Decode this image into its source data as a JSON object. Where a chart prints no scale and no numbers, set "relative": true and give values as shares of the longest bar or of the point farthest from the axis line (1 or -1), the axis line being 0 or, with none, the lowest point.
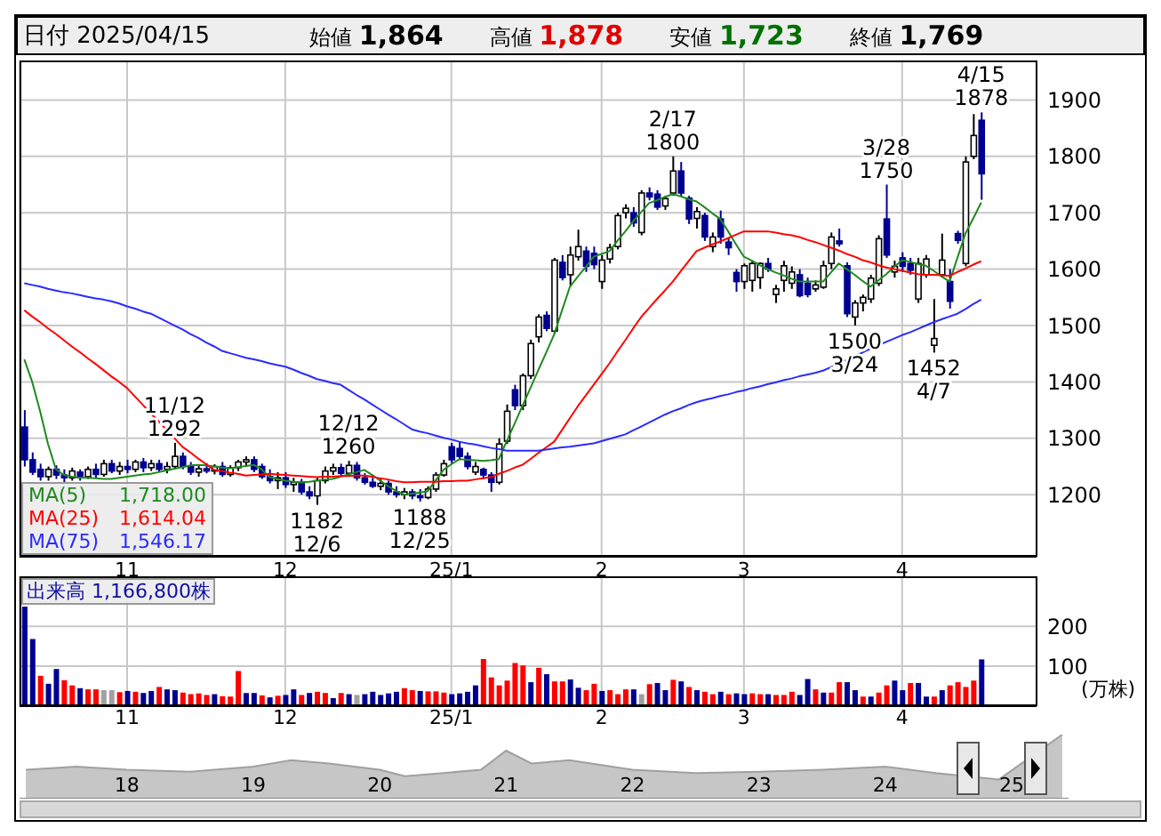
{
  "chart_data": [
    {
      "type": "candlestick",
      "title": "日付 2025/04/15",
      "categories": [
        null,
        null,
        null,
        null,
        null,
        null,
        null,
        null,
        null,
        null,
        null,
        null,
        null,
        "11",
        null,
        null,
        null,
        null,
        null,
        null,
        null,
        null,
        null,
        null,
        null,
        null,
        null,
        null,
        null,
        null,
        null,
        null,
        null,
        "12",
        null,
        null,
        null,
        null,
        null,
        null,
        null,
        null,
        null,
        null,
        null,
        null,
        null,
        null,
        null,
        null,
        null,
        null,
        null,
        null,
        "25/1",
        null,
        null,
        null,
        null,
        null,
        null,
        null,
        null,
        null,
        null,
        null,
        null,
        null,
        null,
        null,
        null,
        null,
        null,
        "2",
        null,
        null,
        null,
        null,
        null,
        null,
        null,
        null,
        null,
        null,
        null,
        null,
        null,
        null,
        null,
        null,
        null,
        "3",
        null,
        null,
        null,
        null,
        null,
        null,
        null,
        null,
        null,
        null,
        null,
        null,
        null,
        null,
        null,
        null,
        null,
        null,
        null,
        "4",
        null,
        null,
        null,
        null,
        null,
        null,
        null,
        null,
        null,
        null
      ],
      "ohlc": [
        [
          1320,
          1350,
          1250,
          1262
        ],
        [
          1262,
          1275,
          1235,
          1240
        ],
        [
          1245,
          1255,
          1225,
          1232
        ],
        [
          1232,
          1250,
          1225,
          1245
        ],
        [
          1245,
          1252,
          1228,
          1235
        ],
        [
          1235,
          1245,
          1222,
          1230
        ],
        [
          1230,
          1248,
          1225,
          1242
        ],
        [
          1240,
          1245,
          1225,
          1232
        ],
        [
          1232,
          1250,
          1228,
          1245
        ],
        [
          1245,
          1255,
          1230,
          1236
        ],
        [
          1236,
          1262,
          1232,
          1255
        ],
        [
          1255,
          1262,
          1238,
          1242
        ],
        [
          1242,
          1258,
          1235,
          1250
        ],
        [
          1250,
          1262,
          1238,
          1245
        ],
        [
          1245,
          1262,
          1240,
          1258
        ],
        [
          1258,
          1265,
          1240,
          1248
        ],
        [
          1248,
          1262,
          1242,
          1255
        ],
        [
          1255,
          1262,
          1240,
          1245
        ],
        [
          1245,
          1258,
          1238,
          1250
        ],
        [
          1250,
          1292,
          1245,
          1268
        ],
        [
          1268,
          1275,
          1245,
          1250
        ],
        [
          1250,
          1258,
          1235,
          1240
        ],
        [
          1240,
          1252,
          1232,
          1246
        ],
        [
          1246,
          1256,
          1238,
          1242
        ],
        [
          1242,
          1254,
          1236,
          1250
        ],
        [
          1250,
          1258,
          1232,
          1236
        ],
        [
          1236,
          1252,
          1232,
          1248
        ],
        [
          1248,
          1262,
          1242,
          1258
        ],
        [
          1258,
          1268,
          1250,
          1262
        ],
        [
          1262,
          1268,
          1240,
          1245
        ],
        [
          1250,
          1255,
          1228,
          1232
        ],
        [
          1232,
          1245,
          1220,
          1225
        ],
        [
          1225,
          1240,
          1210,
          1230
        ],
        [
          1230,
          1240,
          1212,
          1218
        ],
        [
          1218,
          1230,
          1205,
          1222
        ],
        [
          1222,
          1228,
          1200,
          1205
        ],
        [
          1205,
          1215,
          1192,
          1198
        ],
        [
          1198,
          1230,
          1182,
          1225
        ],
        [
          1225,
          1250,
          1220,
          1242
        ],
        [
          1242,
          1255,
          1235,
          1248
        ],
        [
          1248,
          1255,
          1232,
          1238
        ],
        [
          1238,
          1260,
          1232,
          1252
        ],
        [
          1252,
          1258,
          1225,
          1230
        ],
        [
          1230,
          1238,
          1218,
          1222
        ],
        [
          1222,
          1230,
          1212,
          1215
        ],
        [
          1215,
          1228,
          1208,
          1220
        ],
        [
          1220,
          1225,
          1200,
          1205
        ],
        [
          1205,
          1215,
          1195,
          1200
        ],
        [
          1200,
          1212,
          1192,
          1205
        ],
        [
          1205,
          1210,
          1192,
          1198
        ],
        [
          1198,
          1210,
          1188,
          1195
        ],
        [
          1195,
          1215,
          1192,
          1210
        ],
        [
          1210,
          1240,
          1205,
          1235
        ],
        [
          1235,
          1262,
          1232,
          1255
        ],
        [
          1285,
          1292,
          1255,
          1262
        ],
        [
          1282,
          1295,
          1262,
          1268
        ],
        [
          1268,
          1275,
          1245,
          1250
        ],
        [
          1240,
          1258,
          1235,
          1250
        ],
        [
          1245,
          1248,
          1228,
          1235
        ],
        [
          1235,
          1240,
          1205,
          1222
        ],
        [
          1222,
          1300,
          1218,
          1290
        ],
        [
          1295,
          1360,
          1290,
          1348
        ],
        [
          1386,
          1395,
          1350,
          1358
        ],
        [
          1358,
          1415,
          1350,
          1411
        ],
        [
          1411,
          1475,
          1405,
          1468
        ],
        [
          1480,
          1520,
          1470,
          1515
        ],
        [
          1518,
          1525,
          1490,
          1495
        ],
        [
          1490,
          1620,
          1485,
          1616
        ],
        [
          1612,
          1625,
          1580,
          1585
        ],
        [
          1590,
          1640,
          1570,
          1625
        ],
        [
          1622,
          1670,
          1615,
          1640
        ],
        [
          1632,
          1640,
          1595,
          1605
        ],
        [
          1628,
          1640,
          1600,
          1608
        ],
        [
          1578,
          1625,
          1565,
          1616
        ],
        [
          1618,
          1645,
          1610,
          1638
        ],
        [
          1640,
          1700,
          1635,
          1695
        ],
        [
          1700,
          1715,
          1690,
          1708
        ],
        [
          1700,
          1710,
          1675,
          1682
        ],
        [
          1665,
          1740,
          1660,
          1735
        ],
        [
          1735,
          1745,
          1722,
          1728
        ],
        [
          1733,
          1740,
          1705,
          1710
        ],
        [
          1712,
          1730,
          1705,
          1725
        ],
        [
          1735,
          1800,
          1730,
          1774
        ],
        [
          1774,
          1790,
          1730,
          1735
        ],
        [
          1726,
          1730,
          1680,
          1689
        ],
        [
          1690,
          1710,
          1672,
          1702
        ],
        [
          1695,
          1700,
          1650,
          1657
        ],
        [
          1640,
          1665,
          1630,
          1657
        ],
        [
          1689,
          1704,
          1645,
          1657
        ],
        [
          1648,
          1655,
          1625,
          1638
        ],
        [
          1594,
          1600,
          1560,
          1578
        ],
        [
          1578,
          1610,
          1565,
          1606
        ],
        [
          1580,
          1615,
          1560,
          1610
        ],
        [
          1585,
          1612,
          1565,
          1610
        ],
        [
          1610,
          1620,
          1595,
          1600
        ],
        [
          1555,
          1572,
          1540,
          1565
        ],
        [
          1580,
          1615,
          1560,
          1606
        ],
        [
          1575,
          1605,
          1565,
          1595
        ],
        [
          1590,
          1600,
          1550,
          1553
        ],
        [
          1575,
          1585,
          1550,
          1555
        ],
        [
          1565,
          1580,
          1560,
          1572
        ],
        [
          1568,
          1615,
          1565,
          1606
        ],
        [
          1610,
          1665,
          1600,
          1657
        ],
        [
          1650,
          1672,
          1640,
          1645
        ],
        [
          1606,
          1612,
          1515,
          1521
        ],
        [
          1515,
          1545,
          1500,
          1540
        ],
        [
          1540,
          1555,
          1525,
          1550
        ],
        [
          1547,
          1590,
          1540,
          1584
        ],
        [
          1575,
          1660,
          1570,
          1654
        ],
        [
          1689,
          1750,
          1620,
          1625
        ],
        [
          1595,
          1615,
          1585,
          1605
        ],
        [
          1620,
          1630,
          1595,
          1605
        ],
        [
          1610,
          1620,
          1590,
          1598
        ],
        [
          1547,
          1620,
          1540,
          1610
        ],
        [
          1590,
          1625,
          1585,
          1618
        ],
        [
          1465,
          1547,
          1452,
          1477
        ],
        [
          1590,
          1663,
          1585,
          1616
        ],
        [
          1578,
          1600,
          1530,
          1543
        ],
        [
          1663,
          1668,
          1645,
          1651
        ],
        [
          1610,
          1800,
          1605,
          1790
        ],
        [
          1800,
          1875,
          1795,
          1837
        ],
        [
          1864,
          1878,
          1723,
          1769
        ]
      ],
      "series": [
        {
          "name": "MA(5) 1,718.00",
          "type": "line",
          "color": "#1e8a1e",
          "values": [
            1440,
            1400,
            1348,
            1290,
            1245,
            1235,
            1232,
            1230,
            1230,
            1229,
            1228,
            1228,
            1230,
            1232,
            1234,
            1236,
            1237,
            1240,
            1243,
            1246,
            1249,
            1252,
            1253,
            1252,
            1250,
            1248,
            1247,
            1249,
            1251,
            1253,
            1245,
            1231,
            1228,
            1225,
            1223,
            1222,
            1223,
            1225,
            1227,
            1228,
            1232,
            1236,
            1240,
            1244,
            1235,
            1225,
            1215,
            1207,
            1200,
            1202,
            1204,
            1206,
            1225,
            1244,
            1254,
            1263,
            1262,
            1261,
            1260,
            1261,
            1263,
            1295,
            1326,
            1358,
            1389,
            1421,
            1452,
            1484,
            1527,
            1569,
            1587,
            1604,
            1622,
            1627,
            1632,
            1650,
            1667,
            1685,
            1701,
            1717,
            1722,
            1728,
            1733,
            1729,
            1724,
            1720,
            1710,
            1699,
            1689,
            1667,
            1644,
            1622,
            1615,
            1607,
            1600,
            1594,
            1589,
            1583,
            1578,
            1578,
            1578,
            1578,
            1594,
            1610,
            1600,
            1590,
            1579,
            1569,
            1580,
            1591,
            1604,
            1616,
            1613,
            1609,
            1606,
            1597,
            1587,
            1578,
            1620,
            1663,
            1690,
            1718
          ]
        },
        {
          "name": "MA(25) 1,614.04",
          "type": "line",
          "color": "#ff0000",
          "values": [
            1527,
            1516,
            1506,
            1495,
            1485,
            1474,
            1463,
            1453,
            1442,
            1432,
            1421,
            1410,
            1400,
            1389,
            1374,
            1359,
            1344,
            1330,
            1315,
            1300,
            1285,
            1275,
            1264,
            1254,
            1244,
            1242,
            1239,
            1237,
            1234,
            1235,
            1236,
            1237,
            1236,
            1235,
            1234,
            1233,
            1232,
            1231,
            1232,
            1232,
            1233,
            1233,
            1234,
            1234,
            1232,
            1229,
            1227,
            1224,
            1222,
            1222,
            1223,
            1223,
            1223,
            1224,
            1224,
            1225,
            1225,
            1227,
            1229,
            1231,
            1237,
            1242,
            1248,
            1253,
            1263,
            1274,
            1284,
            1294,
            1315,
            1336,
            1357,
            1376,
            1395,
            1414,
            1433,
            1454,
            1474,
            1495,
            1515,
            1531,
            1547,
            1562,
            1578,
            1596,
            1614,
            1632,
            1638,
            1644,
            1649,
            1655,
            1661,
            1667,
            1667,
            1667,
            1667,
            1665,
            1662,
            1660,
            1657,
            1652,
            1648,
            1643,
            1638,
            1633,
            1627,
            1622,
            1616,
            1612,
            1607,
            1603,
            1600,
            1597,
            1594,
            1591,
            1590,
            1590,
            1589,
            1588,
            1595,
            1601,
            1608,
            1614
          ]
        },
        {
          "name": "MA(75) 1,546.17",
          "type": "line",
          "color": "#2b2bff",
          "values": [
            1575,
            1572,
            1569,
            1565,
            1562,
            1559,
            1557,
            1554,
            1551,
            1548,
            1546,
            1543,
            1539,
            1534,
            1530,
            1525,
            1521,
            1514,
            1507,
            1500,
            1493,
            1485,
            1478,
            1470,
            1463,
            1455,
            1451,
            1447,
            1443,
            1440,
            1437,
            1433,
            1430,
            1427,
            1422,
            1416,
            1411,
            1405,
            1402,
            1398,
            1395,
            1386,
            1377,
            1369,
            1360,
            1351,
            1342,
            1334,
            1325,
            1316,
            1312,
            1309,
            1305,
            1301,
            1298,
            1294,
            1291,
            1289,
            1286,
            1283,
            1281,
            1278,
            1278,
            1278,
            1278,
            1278,
            1280,
            1282,
            1284,
            1285,
            1287,
            1289,
            1291,
            1295,
            1299,
            1303,
            1307,
            1314,
            1321,
            1328,
            1335,
            1342,
            1348,
            1353,
            1359,
            1364,
            1368,
            1371,
            1375,
            1378,
            1382,
            1385,
            1389,
            1392,
            1396,
            1399,
            1403,
            1406,
            1410,
            1413,
            1416,
            1420,
            1426,
            1433,
            1439,
            1446,
            1452,
            1459,
            1465,
            1471,
            1477,
            1483,
            1488,
            1494,
            1500,
            1506,
            1511,
            1516,
            1521,
            1529,
            1538,
            1546
          ]
        }
      ],
      "ylim": [
        1090,
        1970
      ],
      "yticks": [
        1200,
        1300,
        1400,
        1500,
        1600,
        1700,
        1800,
        1900
      ],
      "grid": true,
      "legend": "bottom left",
      "annotations": [
        "始値 1,864",
        "高値 1,878",
        "安値 1,723",
        "終値 1,769",
        {
          "text": "11/12\n1292",
          "y": 1292
        },
        {
          "text": "1182\n12/6",
          "y": 1182
        },
        {
          "text": "12/12\n1260",
          "y": 1260
        },
        {
          "text": "1188\n12/25",
          "y": 1188
        },
        {
          "text": "2/17\n1800",
          "y": 1800
        },
        {
          "text": "1500\n3/24",
          "y": 1500
        },
        {
          "text": "3/28\n1750",
          "y": 1750
        },
        {
          "text": "1452\n4/7",
          "y": 1452
        },
        {
          "text": "4/15\n1878",
          "y": 1878
        }
      ]
    },
    {
      "type": "bar",
      "title": "出来高 1,166,800株",
      "ylabel": "(万株)",
      "categories": [
        null,
        null,
        null,
        null,
        null,
        null,
        null,
        null,
        null,
        null,
        null,
        null,
        null,
        "11",
        null,
        null,
        null,
        null,
        null,
        null,
        null,
        null,
        null,
        null,
        null,
        null,
        null,
        null,
        null,
        null,
        null,
        null,
        null,
        "12",
        null,
        null,
        null,
        null,
        null,
        null,
        null,
        null,
        null,
        null,
        null,
        null,
        null,
        null,
        null,
        null,
        null,
        null,
        null,
        null,
        "25/1",
        null,
        null,
        null,
        null,
        null,
        null,
        null,
        null,
        null,
        null,
        null,
        null,
        null,
        null,
        null,
        null,
        null,
        null,
        "2",
        null,
        null,
        null,
        null,
        null,
        null,
        null,
        null,
        null,
        null,
        null,
        null,
        null,
        null,
        null,
        null,
        null,
        "3",
        null,
        null,
        null,
        null,
        null,
        null,
        null,
        null,
        null,
        null,
        null,
        null,
        null,
        null,
        null,
        null,
        null,
        null,
        null,
        "4",
        null,
        null,
        null,
        null,
        null,
        null,
        null,
        null,
        null,
        null
      ],
      "values": [
        249,
        168,
        76,
        56,
        93,
        65,
        52,
        45,
        42,
        42,
        40,
        40,
        35,
        38,
        36,
        33,
        38,
        48,
        42,
        40,
        34,
        30,
        32,
        28,
        30,
        25,
        24,
        88,
        33,
        33,
        27,
        22,
        26,
        28,
        42,
        28,
        33,
        36,
        33,
        20,
        33,
        30,
        28,
        30,
        36,
        28,
        32,
        36,
        45,
        40,
        38,
        37,
        37,
        34,
        30,
        32,
        36,
        52,
        118,
        72,
        52,
        64,
        108,
        102,
        60,
        96,
        80,
        62,
        62,
        67,
        46,
        40,
        56,
        38,
        40,
        30,
        42,
        42,
        30,
        55,
        58,
        40,
        66,
        62,
        48,
        40,
        36,
        30,
        36,
        30,
        32,
        30,
        32,
        30,
        30,
        28,
        28,
        36,
        28,
        68,
        42,
        34,
        34,
        60,
        60,
        40,
        24,
        24,
        34,
        52,
        64,
        40,
        58,
        58,
        24,
        24,
        40,
        52,
        60,
        48,
        64,
        117
      ],
      "colors": [
        "#000090",
        "#000090",
        "#ff0000",
        "#000090",
        "#000090",
        "#ff0000",
        "#ff0000",
        "#000090",
        "#ff0000",
        "#ff0000",
        "#a0a0a0",
        "#a0a0a0",
        "#ff0000",
        "#000090",
        "#ff0000",
        "#000090",
        "#000090",
        "#ff0000",
        "#000090",
        "#000090",
        "#ff0000",
        "#ff0000",
        "#ff0000",
        "#ff0000",
        "#000090",
        "#ff0000",
        "#ff0000",
        "#ff0000",
        "#000090",
        "#000090",
        "#ff0000",
        "#000090",
        "#ff0000",
        "#000090",
        "#000090",
        "#ff0000",
        "#000090",
        "#ff0000",
        "#ff0000",
        "#000090",
        "#ff0000",
        "#000090",
        "#a0a0a0",
        "#000090",
        "#000090",
        "#000090",
        "#000090",
        "#000090",
        "#ff0000",
        "#ff0000",
        "#000090",
        "#ff0000",
        "#ff0000",
        "#ff0000",
        "#000090",
        "#000090",
        "#000090",
        "#000090",
        "#ff0000",
        "#ff0000",
        "#ff0000",
        "#ff0000",
        "#ff0000",
        "#ff0000",
        "#000090",
        "#ff0000",
        "#000090",
        "#ff0000",
        "#ff0000",
        "#000090",
        "#000090",
        "#ff0000",
        "#ff0000",
        "#000090",
        "#ff0000",
        "#ff0000",
        "#ff0000",
        "#000090",
        "#a0a0a0",
        "#ff0000",
        "#000090",
        "#000090",
        "#ff0000",
        "#000090",
        "#ff0000",
        "#000090",
        "#ff0000",
        "#ff0000",
        "#000090",
        "#ff0000",
        "#000090",
        "#000090",
        "#ff0000",
        "#ff0000",
        "#000090",
        "#ff0000",
        "#ff0000",
        "#ff0000",
        "#000090",
        "#000090",
        "#ff0000",
        "#000090",
        "#ff0000",
        "#ff0000",
        "#000090",
        "#000090",
        "#ff0000",
        "#000090",
        "#ff0000",
        "#ff0000",
        "#000090",
        "#000090",
        "#ff0000",
        "#000090",
        "#000090",
        "#ff0000",
        "#000090",
        "#ff0000",
        "#ff0000",
        "#ff0000",
        "#ff0000",
        "#000090"
      ],
      "ylim": [
        0,
        325
      ],
      "yticks": [
        100,
        200
      ],
      "grid": true
    },
    {
      "type": "area",
      "relative": true,
      "color": "#a0a0a0",
      "x": [
        17.2,
        17.6,
        18,
        18.5,
        19,
        19.3,
        19.6,
        20,
        20.2,
        20.5,
        20.8,
        21,
        21.2,
        21.5,
        22,
        22.5,
        23,
        23.5,
        24,
        24.4,
        24.9,
        25.4
      ],
      "values": [
        0.45,
        0.5,
        0.45,
        0.42,
        0.5,
        0.6,
        0.55,
        0.45,
        0.35,
        0.4,
        0.45,
        0.75,
        0.55,
        0.6,
        0.45,
        0.4,
        0.42,
        0.45,
        0.5,
        0.4,
        0.3,
        1
      ],
      "xlim": [
        17.15,
        25.45
      ],
      "xticks": [
        18,
        19,
        20,
        21,
        22,
        23,
        24,
        25
      ],
      "tick_labels": "x"
    }
  ]
}
